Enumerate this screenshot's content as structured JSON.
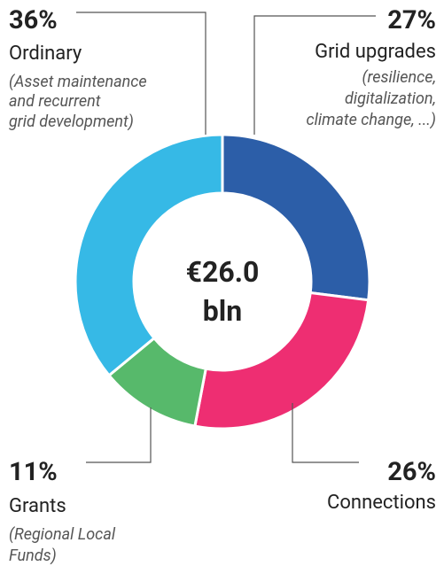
{
  "chart_data": {
    "type": "pie",
    "categories": [
      "Grid upgrades",
      "Connections",
      "Grants",
      "Ordinary"
    ],
    "values": [
      27,
      26,
      11,
      36
    ],
    "value_labels": [
      "27%",
      "26%",
      "11%",
      "36%"
    ],
    "colors": [
      "#2c5ea8",
      "#ee2e72",
      "#57b96b",
      "#36b9e6"
    ],
    "descriptions": [
      [
        "(resilience,",
        "digitalization,",
        "climate change, ...)"
      ],
      [],
      [
        " (Regional Local",
        "Funds)"
      ],
      [
        "(Asset maintenance",
        "and recurrent",
        "grid development)"
      ]
    ],
    "center_label": [
      "€26.0",
      "bln"
    ]
  }
}
